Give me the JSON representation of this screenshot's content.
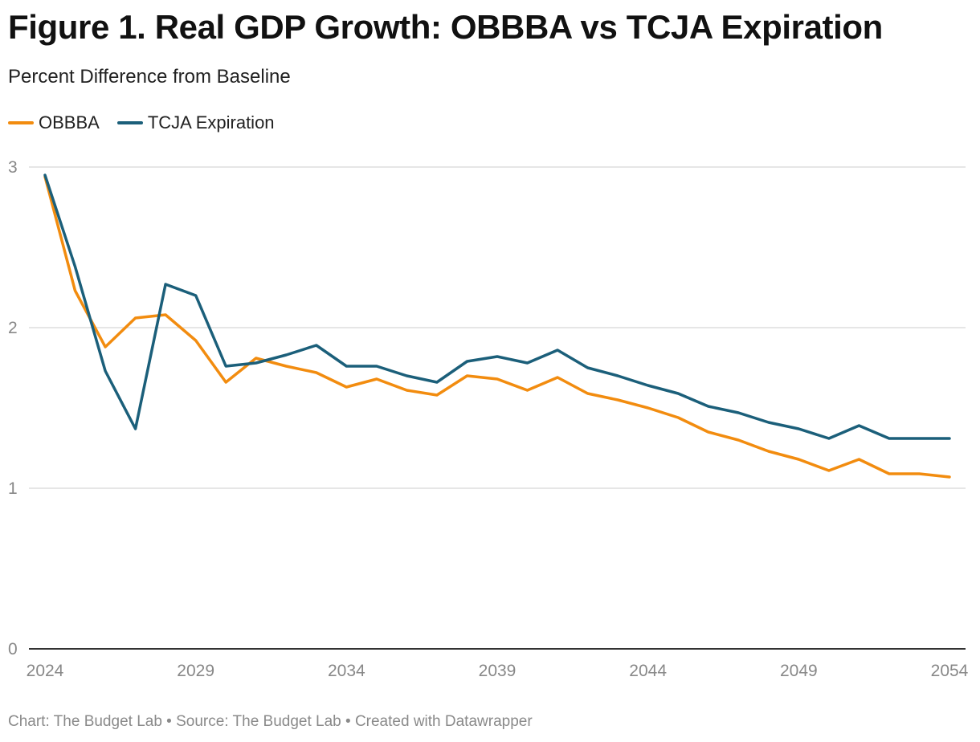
{
  "title": "Figure 1. Real GDP Growth: OBBBA vs TCJA Expiration",
  "subtitle": "Percent Difference from Baseline",
  "footer": "Chart: The Budget Lab • Source: The Budget Lab • Created with Datawrapper",
  "colors": {
    "obbba": "#f28c0f",
    "tcja": "#1b5f7a",
    "grid": "#dddddd",
    "axis": "#333333",
    "tick_text": "#888888"
  },
  "chart_data": {
    "type": "line",
    "x": [
      2024,
      2025,
      2026,
      2027,
      2028,
      2029,
      2030,
      2031,
      2032,
      2033,
      2034,
      2035,
      2036,
      2037,
      2038,
      2039,
      2040,
      2041,
      2042,
      2043,
      2044,
      2045,
      2046,
      2047,
      2048,
      2049,
      2050,
      2051,
      2052,
      2053,
      2054
    ],
    "x_ticks": [
      "2024",
      "2029",
      "2034",
      "2039",
      "2044",
      "2049",
      "2054"
    ],
    "y_ticks": [
      "0",
      "1",
      "2",
      "3"
    ],
    "ylim": [
      0,
      3
    ],
    "xlim": [
      2024,
      2054
    ],
    "grid": true,
    "legend_position": "top-left",
    "series": [
      {
        "name": "OBBBA",
        "color": "#f28c0f",
        "values": [
          2.94,
          2.23,
          1.88,
          2.06,
          2.08,
          1.92,
          1.66,
          1.81,
          1.76,
          1.72,
          1.63,
          1.68,
          1.61,
          1.58,
          1.7,
          1.68,
          1.61,
          1.69,
          1.59,
          1.55,
          1.5,
          1.44,
          1.35,
          1.3,
          1.23,
          1.18,
          1.11,
          1.18,
          1.09,
          1.09,
          1.07
        ]
      },
      {
        "name": "TCJA Expiration",
        "color": "#1b5f7a",
        "values": [
          2.95,
          2.38,
          1.73,
          1.37,
          2.27,
          2.2,
          1.76,
          1.78,
          1.83,
          1.89,
          1.76,
          1.76,
          1.7,
          1.66,
          1.79,
          1.82,
          1.78,
          1.86,
          1.75,
          1.7,
          1.64,
          1.59,
          1.51,
          1.47,
          1.41,
          1.37,
          1.31,
          1.39,
          1.31,
          1.31,
          1.31
        ]
      }
    ]
  }
}
